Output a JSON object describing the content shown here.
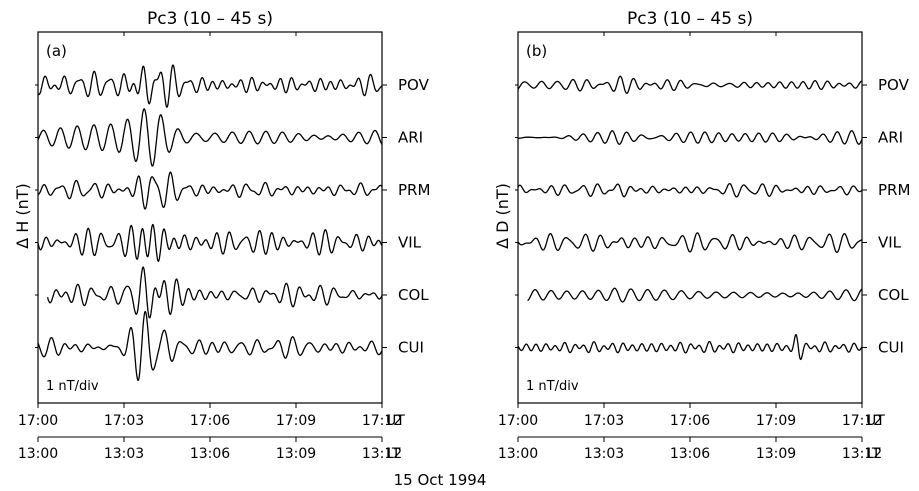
{
  "figure": {
    "date_label": "15 Oct  1994",
    "ut_label": "UT",
    "lt_label": "LT"
  },
  "chart_data": [
    {
      "type": "line",
      "panel_label": "(a)",
      "title": "Pc3 (10 – 45 s)",
      "ylabel": "Δ H (nT)",
      "scale_label": "1 nT/div",
      "x_unit": "UT",
      "x_secondary_unit": "LT",
      "xlim": [
        "17:00",
        "17:12"
      ],
      "x_ticks_ut": [
        "17:00",
        "17:03",
        "17:06",
        "17:09",
        "17:12"
      ],
      "x_ticks_lt": [
        "13:00",
        "13:03",
        "13:06",
        "13:09",
        "13:12"
      ],
      "y_scale_nT_per_div": 1,
      "grid": false,
      "series": [
        {
          "name": "POV",
          "amplitude_nT": {
            "background": 0.28,
            "peak": 0.8
          },
          "peak_window": [
            "17:03:00",
            "17:05:00"
          ],
          "data_starts": "17:00"
        },
        {
          "name": "ARI",
          "amplitude_nT": {
            "background": 0.26,
            "peak": 0.8
          },
          "peak_window": [
            "17:03:00",
            "17:05:00"
          ],
          "data_starts": "17:00"
        },
        {
          "name": "PRM",
          "amplitude_nT": {
            "background": 0.2,
            "peak": 0.55
          },
          "peak_window": [
            "17:03:00",
            "17:05:00"
          ],
          "data_starts": "17:00"
        },
        {
          "name": "VIL",
          "amplitude_nT": {
            "background": 0.3,
            "peak": 1.0
          },
          "peak_window": [
            "17:03:00",
            "17:05:00"
          ],
          "data_starts": "17:00"
        },
        {
          "name": "COL",
          "amplitude_nT": {
            "background": 0.25,
            "peak": 0.95
          },
          "peak_window": [
            "17:03:00",
            "17:05:00"
          ],
          "data_starts": "17:00:20"
        },
        {
          "name": "CUI",
          "amplitude_nT": {
            "background": 0.25,
            "peak": 0.95
          },
          "peak_window": [
            "17:03:00",
            "17:05:00"
          ],
          "data_starts": "17:00"
        }
      ]
    },
    {
      "type": "line",
      "panel_label": "(b)",
      "title": "Pc3 (10 – 45 s)",
      "ylabel": "Δ D (nT)",
      "scale_label": "1 nT/div",
      "x_unit": "UT",
      "x_secondary_unit": "LT",
      "xlim": [
        "17:00",
        "17:12"
      ],
      "x_ticks_ut": [
        "17:00",
        "17:03",
        "17:06",
        "17:09",
        "17:12"
      ],
      "x_ticks_lt": [
        "13:00",
        "13:03",
        "13:06",
        "13:09",
        "13:12"
      ],
      "y_scale_nT_per_div": 1,
      "grid": false,
      "series": [
        {
          "name": "POV",
          "amplitude_nT": {
            "background": 0.15,
            "peak": 0.2
          },
          "peak_window": [
            "17:03:00",
            "17:04:00"
          ],
          "data_starts": "17:00"
        },
        {
          "name": "ARI",
          "amplitude_nT": {
            "background": 0.15,
            "peak": 0.2
          },
          "peak_window": [
            "17:03:00",
            "17:04:00"
          ],
          "data_starts": "17:00"
        },
        {
          "name": "PRM",
          "amplitude_nT": {
            "background": 0.15,
            "peak": 0.3
          },
          "peak_window": [
            "17:03:00",
            "17:04:00"
          ],
          "data_starts": "17:00"
        },
        {
          "name": "VIL",
          "amplitude_nT": {
            "background": 0.2,
            "peak": 0.45
          },
          "peak_window": [
            "17:03:00",
            "17:04:00"
          ],
          "data_starts": "17:00"
        },
        {
          "name": "COL",
          "amplitude_nT": {
            "background": 0.15,
            "peak": 0.2
          },
          "peak_window": [
            "17:03:00",
            "17:04:00"
          ],
          "data_starts": "17:00:20"
        },
        {
          "name": "CUI",
          "amplitude_nT": {
            "background": 0.12,
            "peak": 0.35
          },
          "peak_window": [
            "17:09:30",
            "17:10:00"
          ],
          "data_starts": "17:00"
        }
      ]
    }
  ]
}
